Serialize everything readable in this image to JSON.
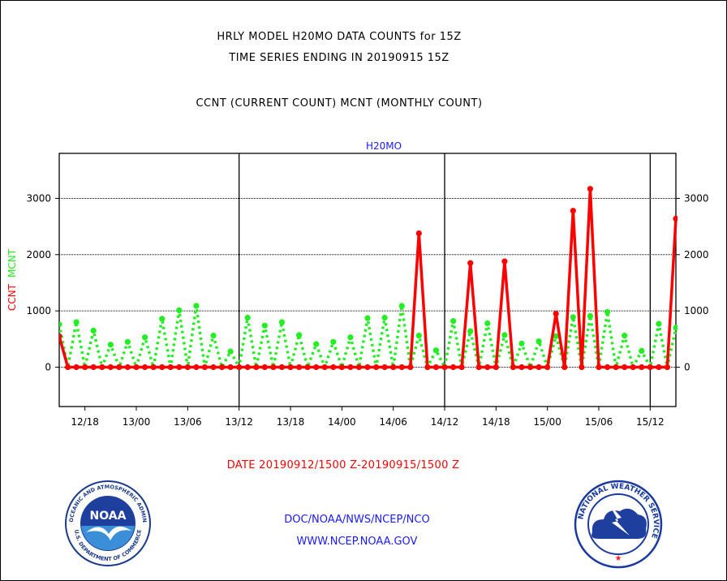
{
  "header": {
    "title_line1": "HRLY MODEL H20MO DATA COUNTS for 15Z",
    "title_line2": "TIME SERIES ENDING IN 20190915 15Z",
    "subtitle": "CCNT (CURRENT COUNT) MCNT (MONTHLY COUNT)"
  },
  "colors": {
    "ccnt": "#ff0000",
    "mcnt": "#22ee22",
    "footer_text": "#1a1aff",
    "plot_title": "#1a1aff"
  },
  "chart_data": {
    "type": "line",
    "title": "H20MO",
    "ylabel_parts": [
      "CCNT",
      "MCNT"
    ],
    "xlabel": "DATE 20190912/1500 Z-20190915/1500 Z",
    "ylim": [
      -700,
      3800
    ],
    "yticks": [
      0,
      1000,
      2000,
      3000
    ],
    "grid": true,
    "x_units": "hours since 20190912/1500 Z",
    "xlim": [
      0,
      72
    ],
    "xticks": [
      {
        "x": 3,
        "label": "12/18"
      },
      {
        "x": 9,
        "label": "13/00"
      },
      {
        "x": 15,
        "label": "13/06"
      },
      {
        "x": 21,
        "label": "13/12"
      },
      {
        "x": 27,
        "label": "13/18"
      },
      {
        "x": 33,
        "label": "14/00"
      },
      {
        "x": 39,
        "label": "14/06"
      },
      {
        "x": 45,
        "label": "14/12"
      },
      {
        "x": 51,
        "label": "14/18"
      },
      {
        "x": 57,
        "label": "15/00"
      },
      {
        "x": 63,
        "label": "15/06"
      },
      {
        "x": 69,
        "label": "15/12"
      }
    ],
    "day_boundaries": [
      21,
      45,
      69
    ],
    "series": [
      {
        "name": "CCNT",
        "style": "solid",
        "values": [
          550,
          0,
          0,
          0,
          0,
          0,
          0,
          0,
          0,
          0,
          0,
          0,
          0,
          0,
          0,
          0,
          0,
          0,
          0,
          0,
          0,
          0,
          0,
          0,
          0,
          0,
          0,
          0,
          0,
          0,
          0,
          0,
          0,
          0,
          0,
          0,
          0,
          0,
          0,
          0,
          0,
          0,
          2380,
          0,
          0,
          0,
          0,
          0,
          1850,
          0,
          0,
          0,
          1880,
          0,
          0,
          0,
          0,
          0,
          950,
          0,
          2780,
          0,
          3170,
          0,
          0,
          0,
          0,
          0,
          0,
          0,
          0,
          0,
          2640
        ]
      },
      {
        "name": "MCNT",
        "style": "dotted",
        "values": [
          760,
          0,
          800,
          0,
          650,
          0,
          400,
          0,
          450,
          0,
          530,
          0,
          860,
          0,
          1010,
          0,
          1090,
          0,
          560,
          0,
          280,
          0,
          880,
          0,
          740,
          0,
          800,
          0,
          570,
          0,
          410,
          0,
          450,
          0,
          530,
          0,
          870,
          0,
          880,
          0,
          1090,
          0,
          560,
          0,
          300,
          0,
          820,
          0,
          640,
          0,
          780,
          0,
          570,
          0,
          420,
          0,
          460,
          0,
          550,
          0,
          890,
          0,
          910,
          0,
          980,
          0,
          560,
          0,
          290,
          0,
          770,
          0,
          700
        ]
      }
    ]
  },
  "footer": {
    "line1": "DOC/NOAA/NWS/NCEP/NCO",
    "line2": "WWW.NCEP.NOAA.GOV"
  },
  "logos": {
    "noaa_text": "NOAA",
    "noaa_ring": "NATIONAL OCEANIC AND ATMOSPHERIC ADMINISTRATION",
    "noaa_ring_bottom": "U.S. DEPARTMENT OF COMMERCE",
    "nws_ring": "NATIONAL WEATHER SERVICE"
  }
}
